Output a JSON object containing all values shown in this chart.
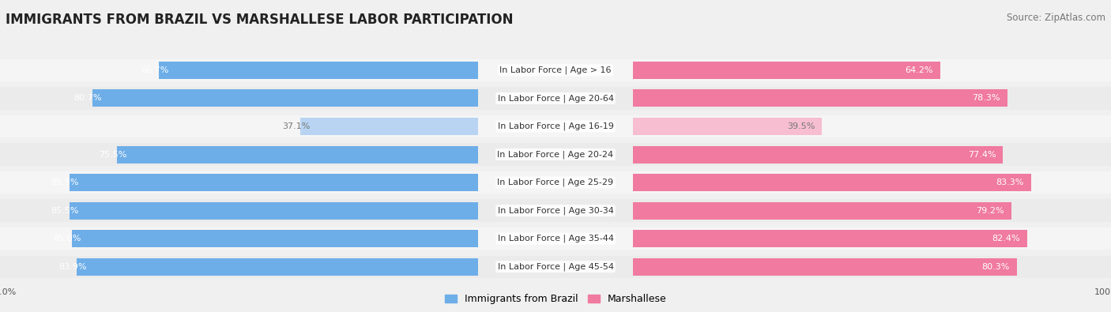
{
  "title": "IMMIGRANTS FROM BRAZIL VS MARSHALLESE LABOR PARTICIPATION",
  "source": "Source: ZipAtlas.com",
  "categories": [
    "In Labor Force | Age > 16",
    "In Labor Force | Age 20-64",
    "In Labor Force | Age 16-19",
    "In Labor Force | Age 20-24",
    "In Labor Force | Age 25-29",
    "In Labor Force | Age 30-34",
    "In Labor Force | Age 35-44",
    "In Labor Force | Age 45-54"
  ],
  "brazil_values": [
    66.7,
    80.7,
    37.1,
    75.5,
    85.5,
    85.5,
    85.0,
    83.9
  ],
  "marshallese_values": [
    64.2,
    78.3,
    39.5,
    77.4,
    83.3,
    79.2,
    82.4,
    80.3
  ],
  "brazil_color": "#6eaee8",
  "brazil_color_light": "#b8d4f2",
  "marshallese_color": "#f07aa0",
  "marshallese_color_light": "#f7bdd0",
  "background_color": "#f0f0f0",
  "row_bg_even": "#f8f8f8",
  "row_bg_odd": "#eeeeee",
  "title_fontsize": 12,
  "source_fontsize": 8.5,
  "label_fontsize": 8,
  "value_fontsize": 8,
  "legend_fontsize": 9,
  "axis_tick_fontsize": 8,
  "max_value": 100.0,
  "bar_height": 0.62,
  "light_row_index": 2
}
